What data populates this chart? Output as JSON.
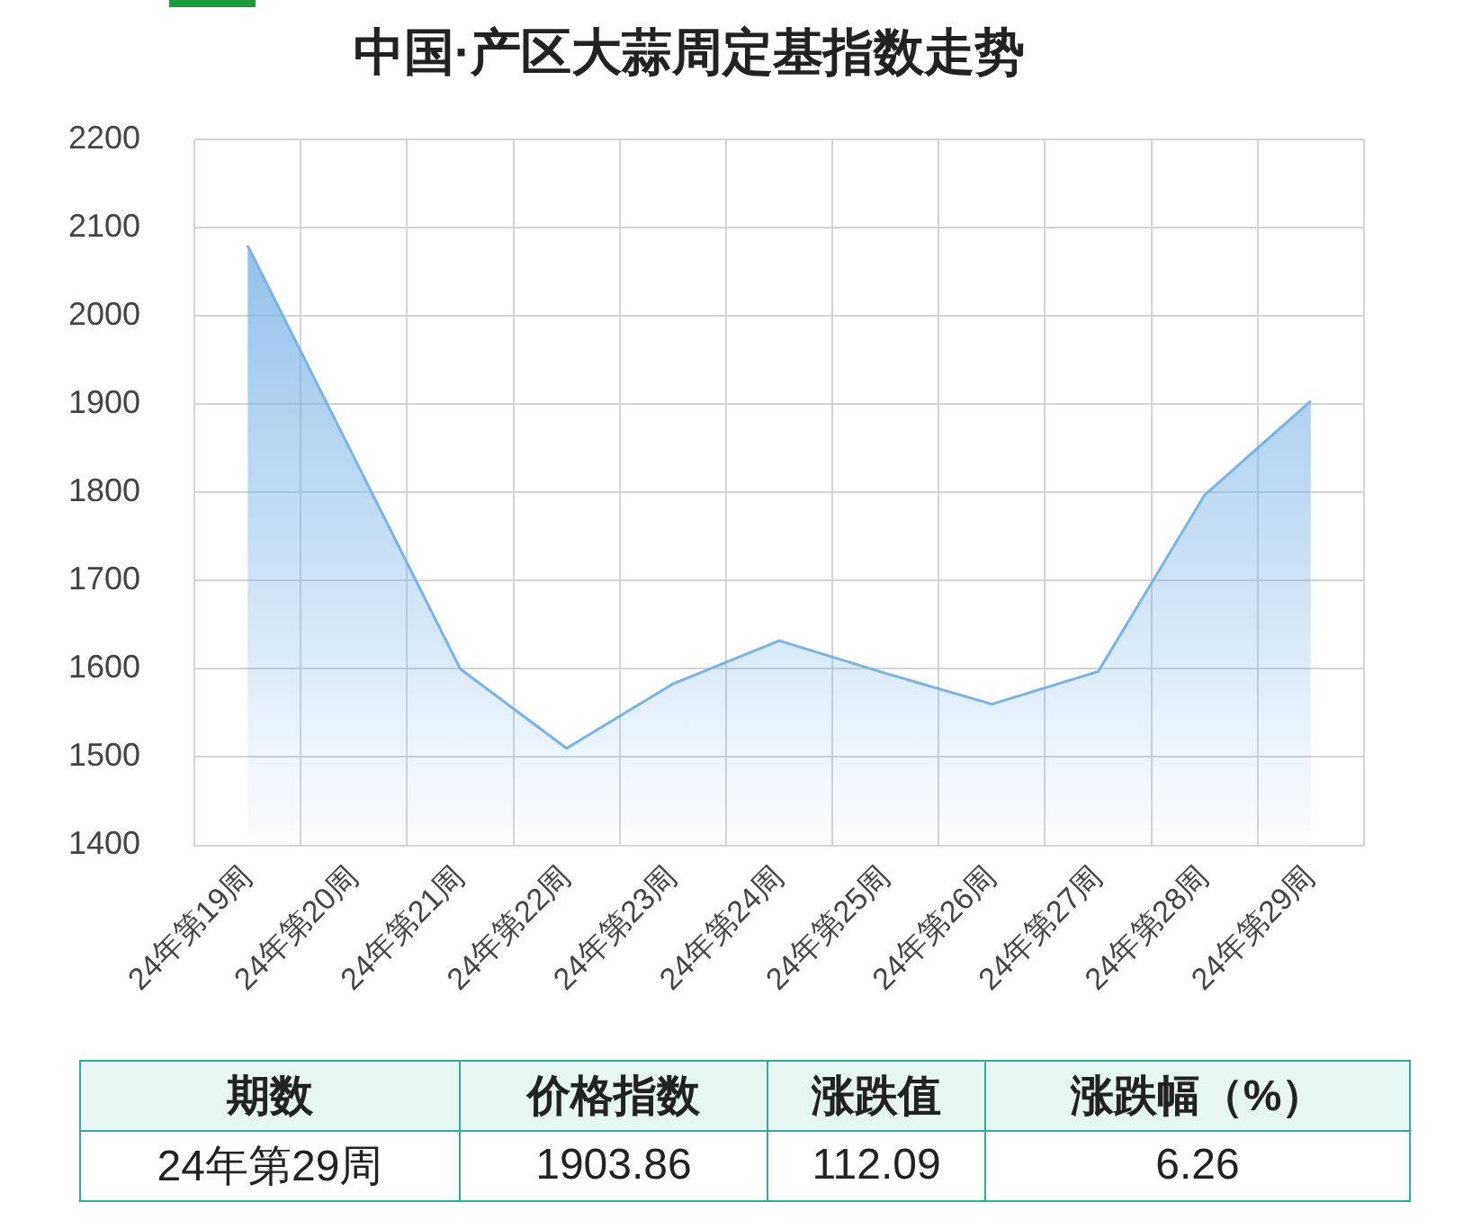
{
  "chart_data": [
    {
      "type": "area",
      "title": "中国·产区大蒜周定基指数走势",
      "categories": [
        "24年第19周",
        "24年第20周",
        "24年第21周",
        "24年第22周",
        "24年第23周",
        "24年第24周",
        "24年第25周",
        "24年第26周",
        "24年第27周",
        "24年第28周",
        "24年第29周"
      ],
      "series": [
        {
          "color": "#7ab3e6",
          "values": [
            2080,
            1840,
            1600,
            1510,
            1583,
            1632,
            1595,
            1560,
            1597,
            1797,
            1903.86
          ]
        }
      ],
      "ylim": [
        1400,
        2200
      ],
      "yticks": [
        1400,
        1500,
        1600,
        1700,
        1800,
        1900,
        2000,
        2100,
        2200
      ],
      "grid": true,
      "legend": false
    },
    {
      "type": "other",
      "annotations": [
        "期数",
        "价格指数",
        "涨跌值",
        "涨跌幅（%）",
        "24年第29周",
        "1903.86",
        "112.09",
        "6.26"
      ]
    }
  ]
}
